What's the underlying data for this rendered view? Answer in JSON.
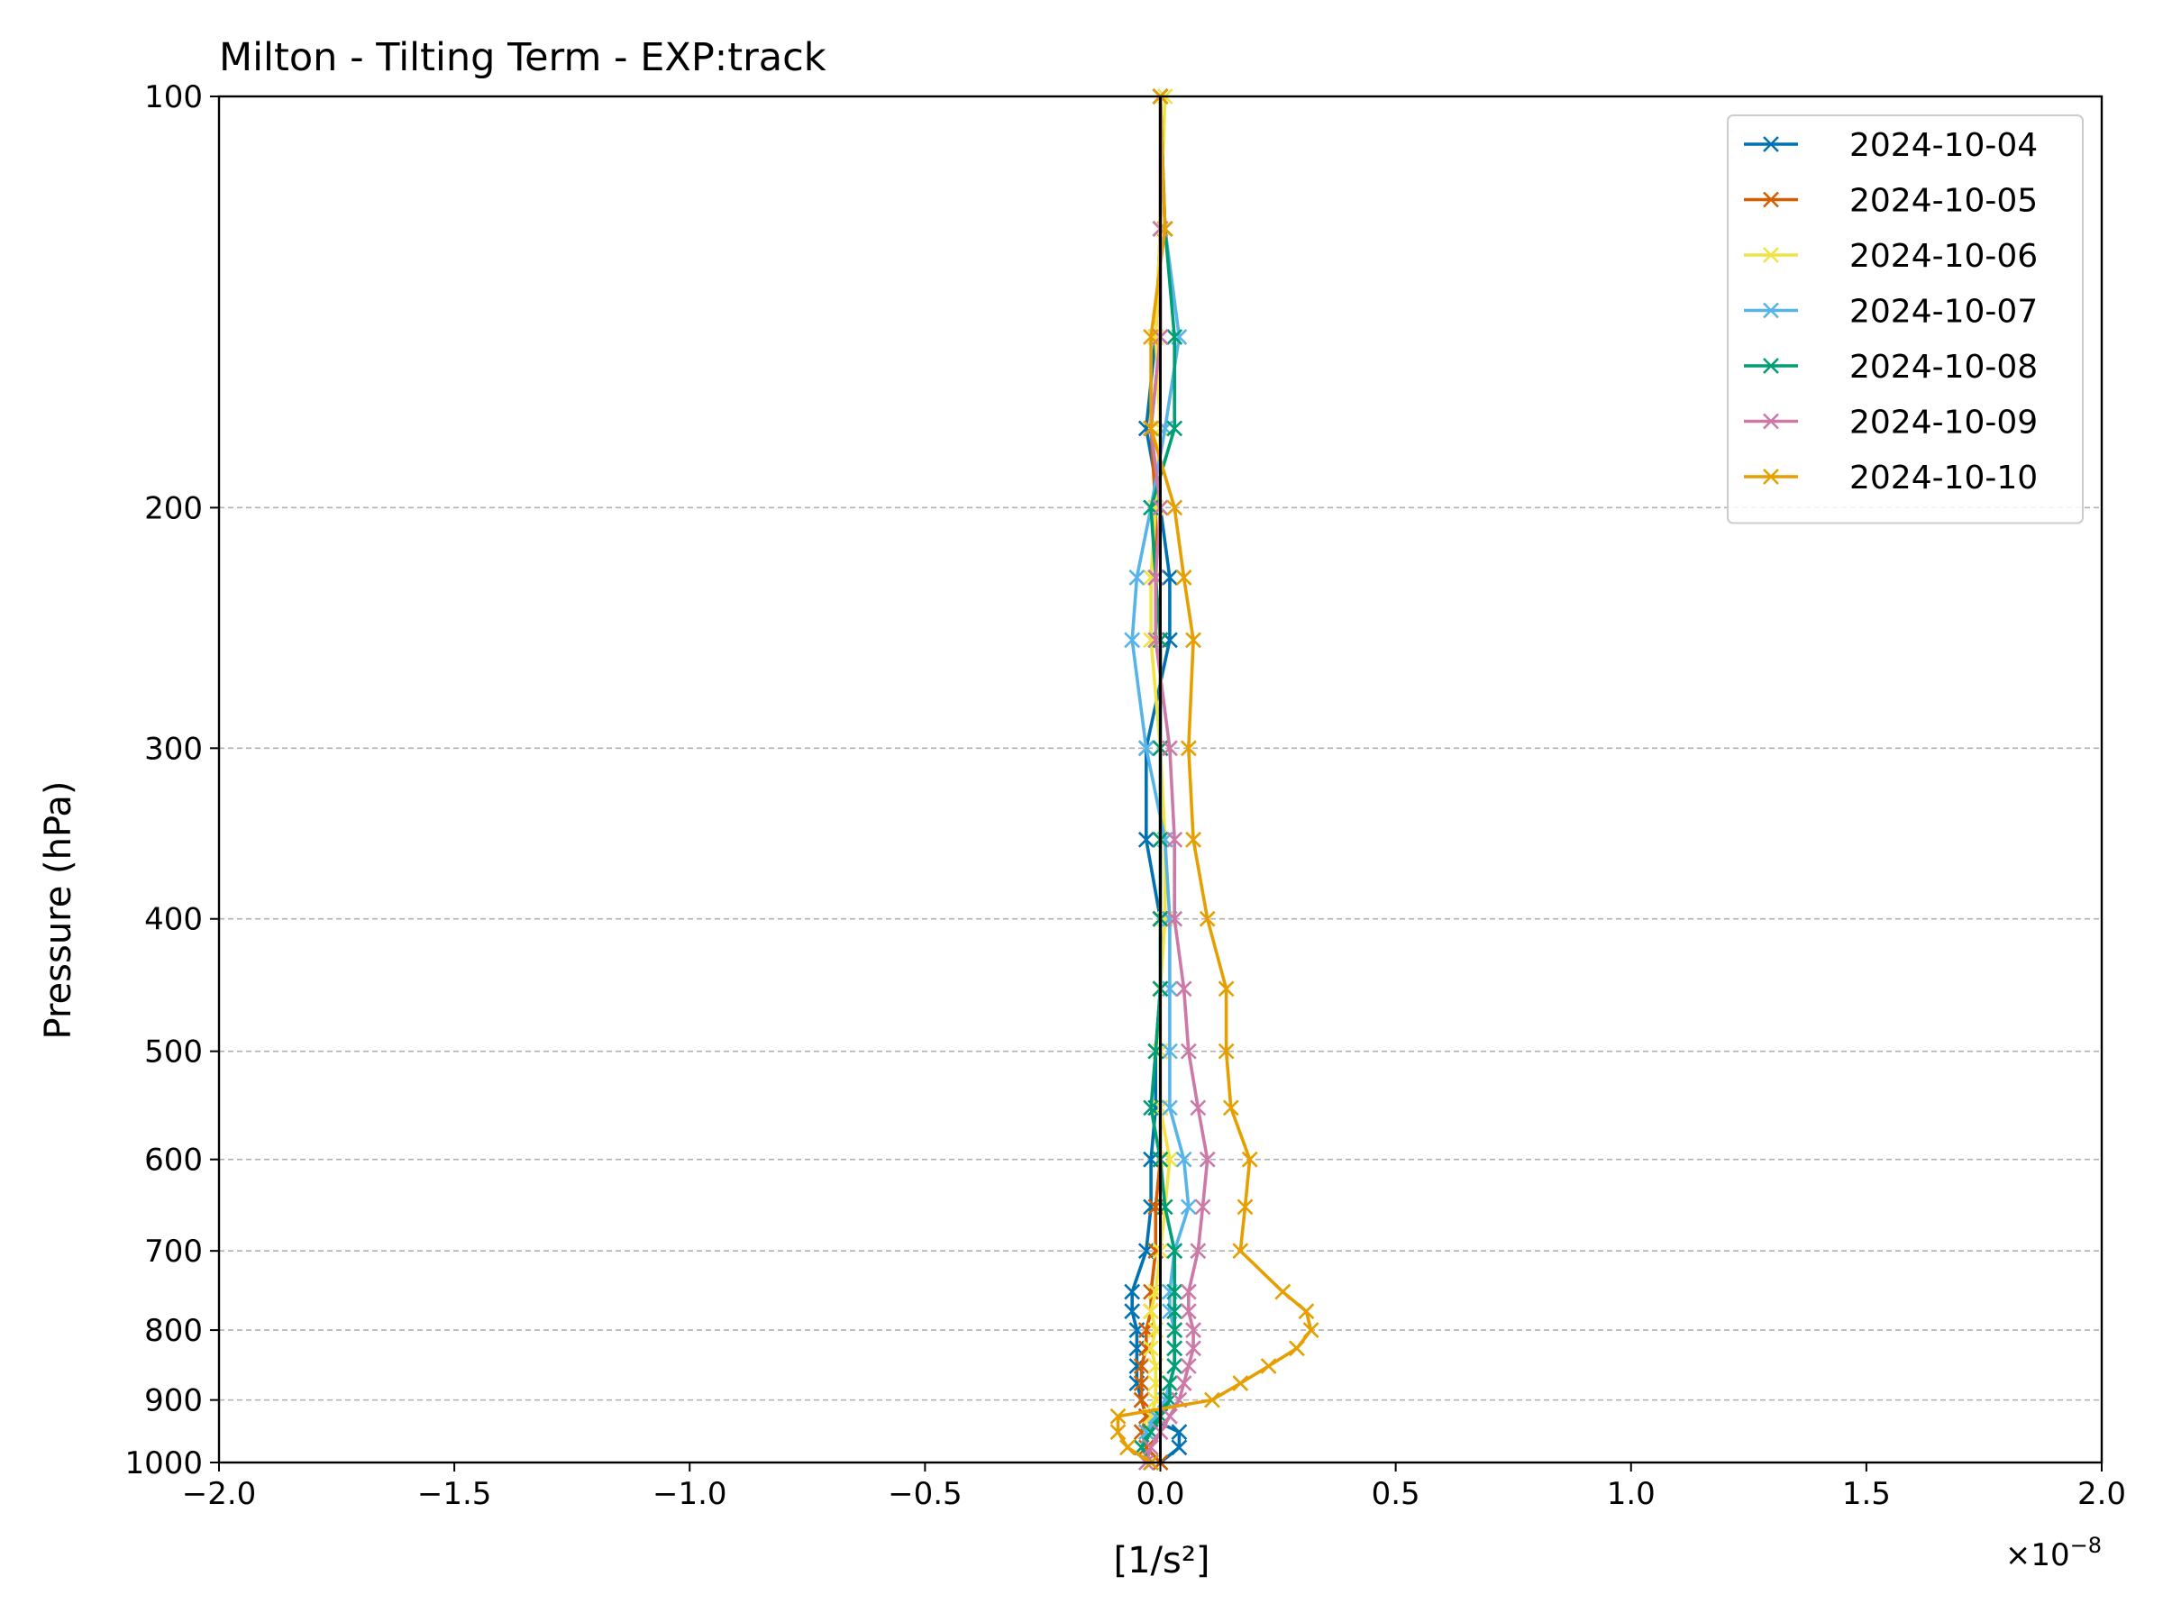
{
  "chart_data": {
    "type": "line",
    "title": "Milton - Tilting Term - EXP:track",
    "xlabel": "[1/s²]",
    "ylabel": "Pressure (hPa)",
    "x_scale_factor_label": "×10",
    "x_scale_factor_exponent": "−8",
    "xlim": [
      -2.0,
      2.0
    ],
    "ylim": [
      1000,
      100
    ],
    "y_scale": "log",
    "x_ticks": [
      -2.0,
      -1.5,
      -1.0,
      -0.5,
      0.0,
      0.5,
      1.0,
      1.5,
      2.0
    ],
    "x_tick_labels": [
      "−2.0",
      "−1.5",
      "−1.0",
      "−0.5",
      "0.0",
      "0.5",
      "1.0",
      "1.5",
      "2.0"
    ],
    "y_ticks": [
      100,
      200,
      300,
      400,
      500,
      600,
      700,
      800,
      900,
      1000
    ],
    "y_tick_labels": [
      "100",
      "200",
      "300",
      "400",
      "500",
      "600",
      "700",
      "800",
      "900",
      "1000"
    ],
    "y_grid": true,
    "legend_position": "top-right",
    "reference_line_x": 0,
    "pressure_levels": [
      100,
      125,
      150,
      175,
      200,
      225,
      250,
      300,
      350,
      400,
      450,
      500,
      550,
      600,
      650,
      700,
      750,
      775,
      800,
      825,
      850,
      875,
      900,
      925,
      950,
      975,
      1000
    ],
    "series": [
      {
        "name": "2024-10-04",
        "color": "#0072b2",
        "values": [
          0.0,
          0.0,
          -0.01,
          -0.03,
          0.0,
          0.02,
          0.02,
          -0.03,
          -0.03,
          0.0,
          0.0,
          -0.01,
          -0.01,
          -0.02,
          -0.02,
          -0.03,
          -0.06,
          -0.06,
          -0.05,
          -0.05,
          -0.05,
          -0.05,
          -0.04,
          -0.03,
          0.04,
          0.04,
          0.0
        ]
      },
      {
        "name": "2024-10-05",
        "color": "#d55e00",
        "values": [
          0.0,
          0.0,
          0.0,
          -0.02,
          -0.01,
          -0.01,
          0.0,
          0.0,
          0.0,
          0.0,
          0.0,
          0.0,
          0.0,
          0.0,
          -0.01,
          -0.01,
          -0.02,
          -0.02,
          -0.03,
          -0.03,
          -0.04,
          -0.04,
          -0.04,
          -0.03,
          -0.04,
          -0.03,
          0.0
        ]
      },
      {
        "name": "2024-10-06",
        "color": "#f0e442",
        "values": [
          0.01,
          0.0,
          -0.01,
          0.0,
          -0.01,
          -0.02,
          -0.02,
          0.0,
          0.01,
          0.01,
          0.0,
          0.0,
          0.0,
          0.02,
          0.01,
          0.0,
          -0.01,
          -0.02,
          -0.01,
          -0.02,
          -0.01,
          -0.01,
          -0.01,
          -0.02,
          -0.03,
          -0.04,
          -0.02
        ]
      },
      {
        "name": "2024-10-07",
        "color": "#56b4e9",
        "values": [
          0.0,
          0.01,
          0.04,
          0.01,
          -0.02,
          -0.05,
          -0.06,
          -0.03,
          0.01,
          0.02,
          0.02,
          0.02,
          0.02,
          0.05,
          0.06,
          0.03,
          0.02,
          0.02,
          0.03,
          0.03,
          0.03,
          0.02,
          0.01,
          -0.01,
          -0.03,
          -0.04,
          -0.02
        ]
      },
      {
        "name": "2024-10-08",
        "color": "#009e73",
        "values": [
          0.0,
          0.01,
          0.03,
          0.03,
          -0.02,
          -0.01,
          0.0,
          0.0,
          0.0,
          0.0,
          0.0,
          -0.01,
          -0.02,
          0.0,
          0.01,
          0.03,
          0.03,
          0.03,
          0.03,
          0.03,
          0.03,
          0.02,
          0.02,
          0.0,
          -0.02,
          -0.04,
          -0.02
        ]
      },
      {
        "name": "2024-10-09",
        "color": "#cc79a7",
        "values": [
          0.0,
          0.0,
          0.0,
          -0.02,
          0.0,
          -0.01,
          -0.01,
          0.02,
          0.03,
          0.03,
          0.05,
          0.06,
          0.08,
          0.1,
          0.09,
          0.08,
          0.06,
          0.06,
          0.07,
          0.07,
          0.06,
          0.05,
          0.04,
          0.02,
          0.0,
          -0.02,
          -0.03
        ]
      },
      {
        "name": "2024-10-10",
        "color": "#e69f00",
        "values": [
          0.0,
          0.01,
          -0.02,
          -0.02,
          0.03,
          0.05,
          0.07,
          0.06,
          0.07,
          0.1,
          0.14,
          0.14,
          0.15,
          0.19,
          0.18,
          0.17,
          0.26,
          0.31,
          0.32,
          0.29,
          0.23,
          0.17,
          0.11,
          -0.09,
          -0.09,
          -0.07,
          -0.02
        ]
      }
    ]
  }
}
